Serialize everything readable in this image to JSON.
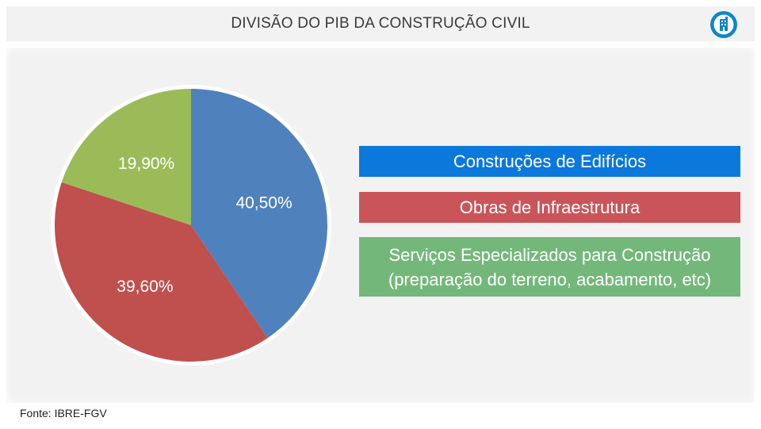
{
  "header": {
    "title": "DIVISÃO DO PIB DA CONSTRUÇÃO CIVIL",
    "logo_icon": "building-in-circle-icon",
    "logo_color": "#0e86c8"
  },
  "chart_data": {
    "type": "pie",
    "categories": [
      "Construções de Edifícios",
      "Obras de Infraestrutura",
      "Serviços Especializados para Construção\n(preparação do terreno, acabamento, etc)"
    ],
    "values": [
      40.5,
      39.6,
      19.9
    ],
    "value_labels": [
      "40,50%",
      "39,60%",
      "19,90%"
    ],
    "slice_colors": [
      "#4f81bd",
      "#c0504d",
      "#9bbb59"
    ],
    "legend_colors": [
      "#0b78dc",
      "#c9555a",
      "#73b87a"
    ],
    "legend_position": "right"
  },
  "footer": {
    "source": "Fonte: IBRE-FGV"
  }
}
